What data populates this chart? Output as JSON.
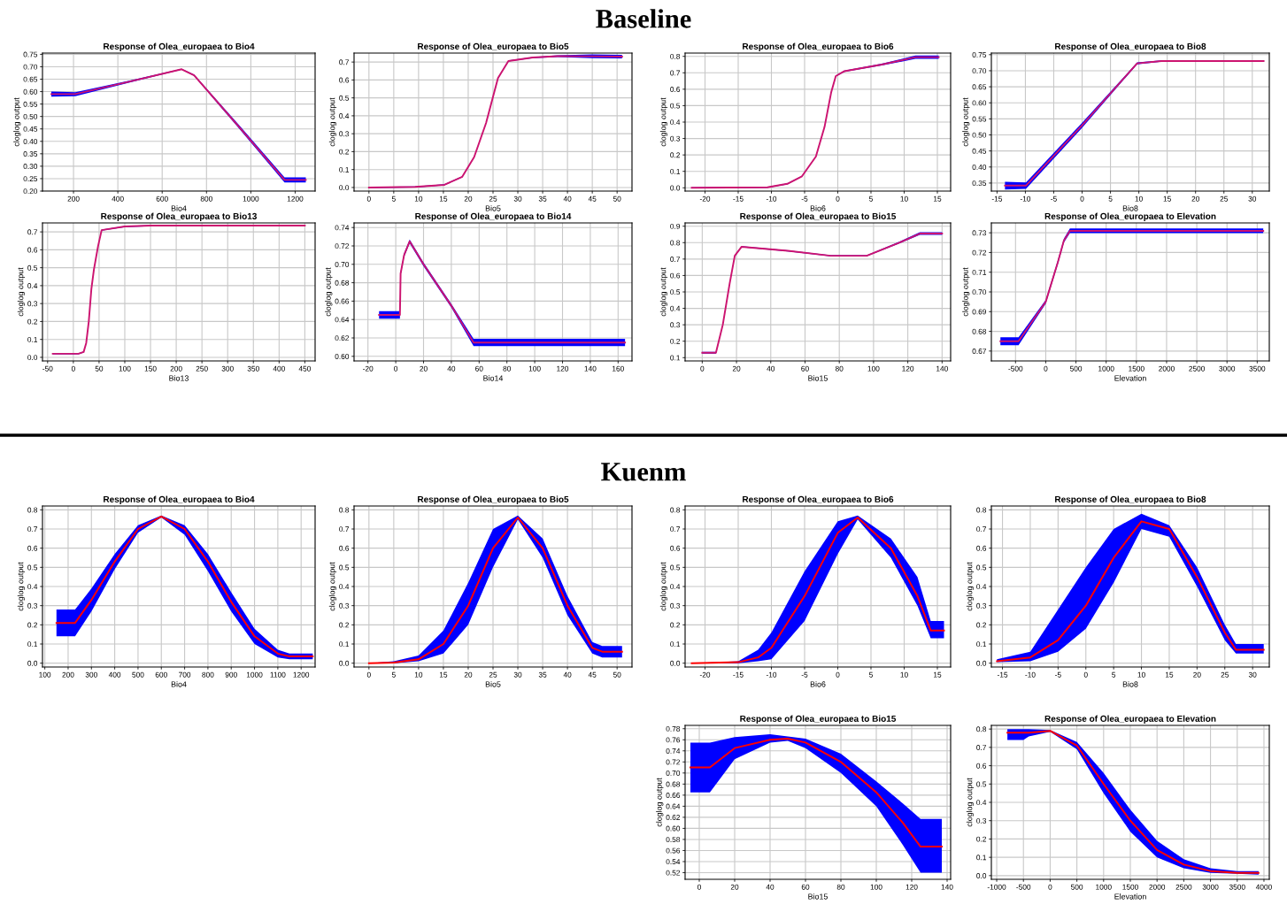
{
  "chart_data": [
    {
      "type": "line",
      "title": "Response of Olea_europaea to Bio4",
      "xlabel": "Bio4",
      "ylabel": "cloglog output",
      "annotations": [
        "Baseline"
      ],
      "grid": true,
      "xlim": [
        60,
        1290
      ],
      "xticks": [
        200,
        400,
        600,
        800,
        1000,
        1200
      ],
      "ylim": [
        0.2,
        0.755
      ],
      "yticks": [
        {
          "value": 0.2,
          "label": "0.20"
        },
        {
          "value": 0.25,
          "label": "0.25"
        },
        {
          "value": 0.3,
          "label": "0.30"
        },
        {
          "value": 0.35,
          "label": "0.35"
        },
        {
          "value": 0.4,
          "label": "0.40"
        },
        {
          "value": 0.45,
          "label": "0.45"
        },
        {
          "value": 0.5,
          "label": "0.50"
        },
        {
          "value": 0.55,
          "label": "0.55"
        },
        {
          "value": 0.6,
          "label": "0.60"
        },
        {
          "value": 0.65,
          "label": "0.65"
        },
        {
          "value": 0.7,
          "label": "0.70"
        },
        {
          "value": 0.75,
          "label": "0.75"
        }
      ],
      "x": [
        100,
        208,
        450,
        688,
        744,
        950,
        1152,
        1248
      ],
      "series": [
        {
          "color": "#cc1470",
          "values": [
            0.59,
            0.59,
            0.64,
            0.69,
            0.666,
            0.455,
            0.245,
            0.245
          ],
          "lower": [
            0.58,
            0.582,
            0.636,
            0.688,
            0.663,
            0.448,
            0.235,
            0.235
          ],
          "upper": [
            0.6,
            0.598,
            0.644,
            0.692,
            0.669,
            0.462,
            0.255,
            0.255
          ]
        }
      ]
    },
    {
      "type": "line",
      "title": "Response of Olea_europaea to Bio5",
      "xlabel": "Bio5",
      "ylabel": "cloglog output",
      "grid": true,
      "xlim": [
        -3,
        53
      ],
      "xticks": [
        0,
        5,
        10,
        15,
        20,
        25,
        30,
        35,
        40,
        45,
        50
      ],
      "ylim": [
        -0.02,
        0.75
      ],
      "yticks": [
        {
          "value": 0,
          "label": "0.0"
        },
        0.1,
        0.2,
        0.3,
        0.4,
        0.5,
        0.6,
        0.7
      ],
      "x": [
        0,
        9.3,
        15.2,
        18.8,
        21.2,
        23.6,
        26,
        28.1,
        33,
        38,
        45,
        51
      ],
      "series": [
        {
          "color": "#cc1470",
          "values": [
            0,
            0.003,
            0.015,
            0.06,
            0.17,
            0.36,
            0.61,
            0.706,
            0.725,
            0.733,
            0.732,
            0.73
          ],
          "lower": [
            -0.003,
            0,
            0.012,
            0.057,
            0.167,
            0.357,
            0.607,
            0.703,
            0.722,
            0.728,
            0.722,
            0.72
          ],
          "upper": [
            0.003,
            0.006,
            0.018,
            0.063,
            0.173,
            0.363,
            0.613,
            0.709,
            0.728,
            0.738,
            0.742,
            0.74
          ]
        }
      ]
    },
    {
      "type": "line",
      "title": "Response of Olea_europaea to Bio6",
      "xlabel": "Bio6",
      "ylabel": "cloglog output",
      "grid": true,
      "xlim": [
        -23,
        17
      ],
      "xticks": [
        -20,
        -15,
        -10,
        -5,
        0,
        5,
        10,
        15
      ],
      "ylim": [
        -0.02,
        0.82
      ],
      "yticks": [
        {
          "value": 0,
          "label": "0.0"
        },
        0.1,
        0.2,
        0.3,
        0.4,
        0.5,
        0.6,
        0.7,
        0.8
      ],
      "x": [
        -22,
        -10.6,
        -7.6,
        -5.4,
        -3.3,
        -2,
        -1,
        -0.3,
        1,
        6.6,
        11.7,
        15.2
      ],
      "series": [
        {
          "color": "#cc1470",
          "values": [
            0,
            0.003,
            0.024,
            0.07,
            0.19,
            0.37,
            0.58,
            0.68,
            0.71,
            0.75,
            0.795,
            0.795
          ],
          "lower": [
            -0.003,
            0,
            0.021,
            0.067,
            0.187,
            0.367,
            0.577,
            0.677,
            0.706,
            0.744,
            0.785,
            0.785
          ],
          "upper": [
            0.003,
            0.006,
            0.027,
            0.073,
            0.193,
            0.373,
            0.583,
            0.683,
            0.714,
            0.756,
            0.805,
            0.805
          ]
        }
      ]
    },
    {
      "type": "line",
      "title": "Response of Olea_europaea to Bio8",
      "xlabel": "Bio8",
      "ylabel": "cloglog output",
      "grid": true,
      "xlim": [
        -16,
        33
      ],
      "xticks": [
        -15,
        -10,
        -5,
        0,
        5,
        10,
        15,
        20,
        25,
        30
      ],
      "ylim": [
        0.325,
        0.755
      ],
      "yticks": [
        0.35,
        {
          "value": 0.4,
          "label": "0.40"
        },
        0.45,
        {
          "value": 0.5,
          "label": "0.50"
        },
        0.55,
        {
          "value": 0.6,
          "label": "0.60"
        },
        0.65,
        {
          "value": 0.7,
          "label": "0.70"
        },
        0.75
      ],
      "x": [
        -13.6,
        -9.9,
        0,
        9.7,
        14,
        32
      ],
      "series": [
        {
          "color": "#cc1470",
          "values": [
            0.342,
            0.342,
            0.53,
            0.723,
            0.73,
            0.73
          ],
          "lower": [
            0.33,
            0.332,
            0.522,
            0.72,
            0.728,
            0.728
          ],
          "upper": [
            0.354,
            0.352,
            0.538,
            0.726,
            0.732,
            0.732
          ]
        }
      ]
    },
    {
      "type": "line",
      "title": "Response of Olea_europaea to Bio13",
      "xlabel": "Bio13",
      "ylabel": "cloglog output",
      "grid": true,
      "xlim": [
        -60,
        470
      ],
      "xticks": [
        -50,
        0,
        50,
        100,
        150,
        200,
        250,
        300,
        350,
        400,
        450
      ],
      "ylim": [
        -0.02,
        0.75
      ],
      "yticks": [
        {
          "value": 0,
          "label": "0.0"
        },
        0.1,
        0.2,
        0.3,
        0.4,
        0.5,
        0.6,
        0.7
      ],
      "x": [
        -40,
        10,
        20,
        25,
        30,
        35,
        40,
        48,
        55,
        100,
        150,
        450
      ],
      "series": [
        {
          "color": "#cc1470",
          "values": [
            0.02,
            0.02,
            0.03,
            0.08,
            0.2,
            0.38,
            0.49,
            0.62,
            0.71,
            0.73,
            0.735,
            0.735
          ],
          "lower": [
            0.017,
            0.017,
            0.027,
            0.077,
            0.197,
            0.377,
            0.487,
            0.617,
            0.707,
            0.727,
            0.732,
            0.732
          ],
          "upper": [
            0.023,
            0.023,
            0.033,
            0.083,
            0.203,
            0.383,
            0.493,
            0.623,
            0.713,
            0.733,
            0.738,
            0.738
          ]
        }
      ]
    },
    {
      "type": "line",
      "title": "Response of Olea_europaea to Bio14",
      "xlabel": "Bio14",
      "ylabel": "cloglog output",
      "grid": true,
      "xlim": [
        -30,
        170
      ],
      "xticks": [
        -20,
        0,
        20,
        40,
        60,
        80,
        100,
        120,
        140,
        160
      ],
      "ylim": [
        0.595,
        0.745
      ],
      "yticks": [
        {
          "value": 0.6,
          "label": "0.60"
        },
        0.62,
        0.64,
        0.66,
        0.68,
        {
          "value": 0.7,
          "label": "0.70"
        },
        0.72,
        0.74
      ],
      "x": [
        -12,
        3,
        3.5,
        6,
        10,
        20,
        40,
        56,
        100,
        165
      ],
      "series": [
        {
          "color": "#cc1470",
          "values": [
            0.645,
            0.645,
            0.69,
            0.71,
            0.725,
            0.7,
            0.655,
            0.615,
            0.615,
            0.615
          ],
          "lower": [
            0.641,
            0.641,
            0.688,
            0.708,
            0.723,
            0.698,
            0.653,
            0.611,
            0.611,
            0.611
          ],
          "upper": [
            0.649,
            0.649,
            0.692,
            0.712,
            0.727,
            0.702,
            0.657,
            0.619,
            0.619,
            0.619
          ]
        }
      ]
    },
    {
      "type": "line",
      "title": "Response of Olea_europaea to Bio15",
      "xlabel": "Bio15",
      "ylabel": "cloglog output",
      "grid": true,
      "xlim": [
        -10,
        145
      ],
      "xticks": [
        0,
        20,
        40,
        60,
        80,
        100,
        120,
        140
      ],
      "ylim": [
        0.08,
        0.92
      ],
      "yticks": [
        0.1,
        0.2,
        0.3,
        0.4,
        0.5,
        0.6,
        0.7,
        0.8,
        0.9
      ],
      "x": [
        0,
        8,
        12,
        16,
        19,
        23,
        50,
        75,
        96,
        115,
        127,
        140
      ],
      "series": [
        {
          "color": "#cc1470",
          "values": [
            0.13,
            0.13,
            0.3,
            0.55,
            0.72,
            0.775,
            0.75,
            0.72,
            0.72,
            0.8,
            0.855,
            0.855
          ],
          "lower": [
            0.125,
            0.125,
            0.297,
            0.547,
            0.717,
            0.772,
            0.747,
            0.717,
            0.717,
            0.795,
            0.847,
            0.847
          ],
          "upper": [
            0.135,
            0.135,
            0.303,
            0.553,
            0.723,
            0.778,
            0.753,
            0.723,
            0.723,
            0.805,
            0.863,
            0.863
          ]
        }
      ]
    },
    {
      "type": "line",
      "title": "Response of Olea_europaea to Elevation",
      "xlabel": "Elevation",
      "ylabel": "cloglog output",
      "grid": true,
      "xlim": [
        -900,
        3700
      ],
      "xticks": [
        -500,
        0,
        500,
        1000,
        1500,
        2000,
        2500,
        3000,
        3500
      ],
      "ylim": [
        0.665,
        0.735
      ],
      "yticks": [
        0.67,
        0.68,
        0.69,
        {
          "value": 0.7,
          "label": "0.70"
        },
        0.71,
        0.72,
        0.73
      ],
      "x": [
        -750,
        -450,
        0,
        200,
        300,
        400,
        3600
      ],
      "series": [
        {
          "color": "#cc1470",
          "values": [
            0.675,
            0.675,
            0.695,
            0.715,
            0.726,
            0.731,
            0.731
          ],
          "lower": [
            0.673,
            0.673,
            0.694,
            0.714,
            0.725,
            0.7298,
            0.7298
          ],
          "upper": [
            0.677,
            0.677,
            0.696,
            0.716,
            0.727,
            0.7322,
            0.7322
          ]
        }
      ]
    },
    {
      "type": "line",
      "title": "Response of Olea_europaea to Bio4",
      "xlabel": "Bio4",
      "ylabel": "cloglog output",
      "annotations": [
        "Kuenm"
      ],
      "grid": true,
      "xlim": [
        90,
        1260
      ],
      "xticks": [
        100,
        200,
        300,
        400,
        500,
        600,
        700,
        800,
        900,
        1000,
        1100,
        1200
      ],
      "ylim": [
        -0.02,
        0.82
      ],
      "yticks": [
        {
          "value": 0,
          "label": "0.0"
        },
        0.1,
        0.2,
        0.3,
        0.4,
        0.5,
        0.6,
        0.7,
        0.8
      ],
      "x": [
        150,
        230,
        300,
        400,
        500,
        600,
        700,
        800,
        900,
        1000,
        1100,
        1150,
        1250
      ],
      "series": [
        {
          "color": "#ff0000",
          "values": [
            0.21,
            0.21,
            0.33,
            0.53,
            0.7,
            0.765,
            0.7,
            0.53,
            0.32,
            0.14,
            0.05,
            0.035,
            0.035
          ],
          "lower": [
            0.14,
            0.14,
            0.27,
            0.49,
            0.68,
            0.76,
            0.67,
            0.48,
            0.27,
            0.1,
            0.03,
            0.02,
            0.02
          ],
          "upper": [
            0.28,
            0.28,
            0.39,
            0.57,
            0.72,
            0.77,
            0.72,
            0.57,
            0.37,
            0.18,
            0.07,
            0.05,
            0.05
          ]
        }
      ]
    },
    {
      "type": "line",
      "title": "Response of Olea_europaea to Bio5",
      "xlabel": "Bio5",
      "ylabel": "cloglog output",
      "grid": true,
      "xlim": [
        -3,
        53
      ],
      "xticks": [
        0,
        5,
        10,
        15,
        20,
        25,
        30,
        35,
        40,
        45,
        50
      ],
      "ylim": [
        -0.02,
        0.82
      ],
      "yticks": [
        {
          "value": 0,
          "label": "0.0"
        },
        0.1,
        0.2,
        0.3,
        0.4,
        0.5,
        0.6,
        0.7,
        0.8
      ],
      "x": [
        0,
        5,
        10,
        15,
        20,
        25,
        30,
        35,
        40,
        45,
        47,
        51
      ],
      "series": [
        {
          "color": "#ff0000",
          "values": [
            0,
            0.003,
            0.02,
            0.1,
            0.3,
            0.6,
            0.76,
            0.6,
            0.3,
            0.08,
            0.06,
            0.06
          ],
          "lower": [
            0,
            0,
            0.01,
            0.05,
            0.2,
            0.5,
            0.75,
            0.55,
            0.25,
            0.05,
            0.03,
            0.03
          ],
          "upper": [
            0,
            0.01,
            0.04,
            0.17,
            0.42,
            0.7,
            0.77,
            0.65,
            0.35,
            0.11,
            0.09,
            0.09
          ]
        }
      ]
    },
    {
      "type": "line",
      "title": "Response of Olea_europaea to Bio6",
      "xlabel": "Bio6",
      "ylabel": "cloglog output",
      "grid": true,
      "xlim": [
        -23,
        17
      ],
      "xticks": [
        -20,
        -15,
        -10,
        -5,
        0,
        5,
        10,
        15
      ],
      "ylim": [
        -0.02,
        0.82
      ],
      "yticks": [
        {
          "value": 0,
          "label": "0.0"
        },
        0.1,
        0.2,
        0.3,
        0.4,
        0.5,
        0.6,
        0.7,
        0.8
      ],
      "x": [
        -22,
        -15,
        -12,
        -10,
        -5,
        0,
        3,
        8,
        12,
        14,
        16
      ],
      "series": [
        {
          "color": "#ff0000",
          "values": [
            0,
            0.005,
            0.03,
            0.08,
            0.35,
            0.68,
            0.76,
            0.6,
            0.35,
            0.17,
            0.17
          ],
          "lower": [
            0,
            0,
            0.01,
            0.02,
            0.22,
            0.57,
            0.75,
            0.55,
            0.3,
            0.13,
            0.13
          ],
          "upper": [
            0,
            0.01,
            0.07,
            0.16,
            0.48,
            0.74,
            0.77,
            0.65,
            0.45,
            0.22,
            0.22
          ]
        }
      ]
    },
    {
      "type": "line",
      "title": "Response of Olea_europaea to Bio8",
      "xlabel": "Bio8",
      "ylabel": "cloglog output",
      "grid": true,
      "xlim": [
        -17,
        33
      ],
      "xticks": [
        -15,
        -10,
        -5,
        0,
        5,
        10,
        15,
        20,
        25,
        30
      ],
      "ylim": [
        -0.02,
        0.82
      ],
      "yticks": [
        {
          "value": 0,
          "label": "0.0"
        },
        0.1,
        0.2,
        0.3,
        0.4,
        0.5,
        0.6,
        0.7,
        0.8
      ],
      "x": [
        -16,
        -10,
        -5,
        0,
        5,
        10,
        15,
        20,
        25,
        27,
        32
      ],
      "series": [
        {
          "color": "#ff0000",
          "values": [
            0.01,
            0.03,
            0.12,
            0.3,
            0.55,
            0.74,
            0.7,
            0.45,
            0.16,
            0.07,
            0.07
          ],
          "lower": [
            0.005,
            0.01,
            0.06,
            0.18,
            0.42,
            0.7,
            0.66,
            0.4,
            0.12,
            0.05,
            0.05
          ],
          "upper": [
            0.02,
            0.06,
            0.28,
            0.5,
            0.7,
            0.78,
            0.72,
            0.5,
            0.2,
            0.1,
            0.1
          ]
        }
      ]
    },
    {
      "type": "line",
      "title": "Response of Olea_europaea to Bio15",
      "xlabel": "Bio15",
      "ylabel": "cloglog output",
      "grid": true,
      "xlim": [
        -8,
        142
      ],
      "xticks": [
        0,
        20,
        40,
        60,
        80,
        100,
        120,
        140
      ],
      "ylim": [
        0.508,
        0.786
      ],
      "yticks": [
        0.52,
        0.54,
        0.56,
        0.58,
        {
          "value": 0.6,
          "label": "0.60"
        },
        0.62,
        0.64,
        0.66,
        0.68,
        {
          "value": 0.7,
          "label": "0.70"
        },
        0.72,
        0.74,
        0.76,
        0.78
      ],
      "x": [
        -5,
        6,
        20,
        40,
        50,
        60,
        80,
        100,
        115,
        125,
        137
      ],
      "series": [
        {
          "color": "#ff0000",
          "values": [
            0.71,
            0.71,
            0.745,
            0.76,
            0.762,
            0.755,
            0.72,
            0.665,
            0.61,
            0.567,
            0.567
          ],
          "lower": [
            0.665,
            0.665,
            0.725,
            0.755,
            0.758,
            0.745,
            0.7,
            0.64,
            0.57,
            0.52,
            0.52
          ],
          "upper": [
            0.755,
            0.755,
            0.765,
            0.77,
            0.766,
            0.762,
            0.735,
            0.685,
            0.645,
            0.617,
            0.617
          ]
        }
      ]
    },
    {
      "type": "line",
      "title": "Response of Olea_europaea to Elevation",
      "xlabel": "Elevation",
      "ylabel": "cloglog output",
      "grid": true,
      "xlim": [
        -1100,
        4100
      ],
      "xticks": [
        -1000,
        -500,
        0,
        500,
        1000,
        1500,
        2000,
        2500,
        3000,
        3500,
        4000
      ],
      "ylim": [
        -0.02,
        0.82
      ],
      "yticks": [
        {
          "value": 0,
          "label": "0.0"
        },
        0.1,
        0.2,
        0.3,
        0.4,
        0.5,
        0.6,
        0.7,
        0.8
      ],
      "x": [
        -800,
        -500,
        -400,
        0,
        500,
        1000,
        1500,
        2000,
        2500,
        3000,
        3500,
        3900
      ],
      "series": [
        {
          "color": "#ff0000",
          "values": [
            0.78,
            0.78,
            0.78,
            0.79,
            0.71,
            0.5,
            0.3,
            0.14,
            0.06,
            0.025,
            0.015,
            0.015
          ],
          "lower": [
            0.74,
            0.74,
            0.76,
            0.785,
            0.69,
            0.45,
            0.24,
            0.1,
            0.04,
            0.015,
            0.01,
            0.005
          ],
          "upper": [
            0.8,
            0.8,
            0.8,
            0.795,
            0.73,
            0.56,
            0.36,
            0.19,
            0.09,
            0.04,
            0.025,
            0.025
          ]
        }
      ]
    }
  ]
}
